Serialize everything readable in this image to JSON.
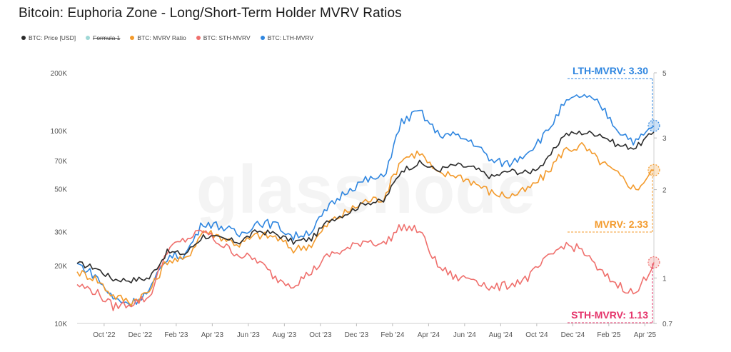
{
  "page": {
    "title": "Bitcoin: Euphoria Zone - Long/Short-Term Holder MVRV Ratios"
  },
  "legend": [
    {
      "label": "BTC: Price [USD]",
      "color": "#2b2b2b",
      "strike": false
    },
    {
      "label": "Formula 1",
      "color": "#9fd8d6",
      "strike": true
    },
    {
      "label": "BTC: MVRV Ratio",
      "color": "#f39a2b",
      "strike": false
    },
    {
      "label": "BTC: STH-MVRV",
      "color": "#ef6f6c",
      "strike": false
    },
    {
      "label": "BTC: LTH-MVRV",
      "color": "#2f86e0",
      "strike": false
    }
  ],
  "watermark": "glassnode",
  "chart_data": {
    "type": "line",
    "x_ticks": [
      "Oct '22",
      "Dec '22",
      "Feb '23",
      "Apr '23",
      "Jun '23",
      "Aug '23",
      "Oct '23",
      "Dec '23",
      "Feb '24",
      "Apr '24",
      "Jun '24",
      "Aug '24",
      "Oct '24",
      "Dec '24",
      "Feb '25",
      "Apr '25"
    ],
    "x_range": [
      "2022-09-01",
      "2025-05-31"
    ],
    "y_left": {
      "scale": "log",
      "range": [
        10000,
        200000
      ],
      "tick_values": [
        10000,
        20000,
        30000,
        50000,
        70000,
        100000,
        200000
      ],
      "tick_labels": [
        "10K",
        "20K",
        "30K",
        "50K",
        "70K",
        "100K",
        "200K"
      ]
    },
    "y_right": {
      "scale": "log",
      "range": [
        0.7,
        5
      ],
      "tick_values": [
        0.7,
        1,
        2,
        3,
        5
      ],
      "tick_labels": [
        "0.7",
        "1",
        "2",
        "3",
        "5"
      ]
    },
    "grid": false,
    "legend_position": "top-left",
    "x": [
      "2022-09",
      "2022-10",
      "2022-11",
      "2022-12",
      "2023-01",
      "2023-02",
      "2023-03",
      "2023-04",
      "2023-05",
      "2023-06",
      "2023-07",
      "2023-08",
      "2023-09",
      "2023-10",
      "2023-11",
      "2023-12",
      "2024-01",
      "2024-02",
      "2024-03",
      "2024-04",
      "2024-05",
      "2024-06",
      "2024-07",
      "2024-08",
      "2024-09",
      "2024-10",
      "2024-11",
      "2024-12",
      "2025-01",
      "2025-02",
      "2025-03",
      "2025-04",
      "2025-05"
    ],
    "series": [
      {
        "name": "BTC: Price [USD]",
        "axis": "left",
        "color": "#2b2b2b",
        "values": [
          20500,
          19500,
          17000,
          16800,
          17200,
          23500,
          23000,
          28500,
          27500,
          26500,
          30200,
          29200,
          26500,
          27500,
          34500,
          37500,
          42500,
          43000,
          62500,
          68000,
          62500,
          66500,
          64000,
          57500,
          62000,
          60500,
          68500,
          95500,
          98000,
          96500,
          84000,
          82000,
          98500
        ]
      },
      {
        "name": "BTC: MVRV Ratio",
        "axis": "right",
        "color": "#f39a2b",
        "values": [
          1.05,
          1.0,
          0.87,
          0.83,
          0.9,
          1.15,
          1.15,
          1.45,
          1.38,
          1.3,
          1.4,
          1.38,
          1.25,
          1.3,
          1.55,
          1.68,
          1.83,
          1.87,
          2.55,
          2.68,
          2.25,
          2.25,
          2.12,
          1.95,
          1.9,
          2.0,
          2.25,
          2.72,
          2.82,
          2.5,
          2.25,
          2.0,
          2.33
        ]
      },
      {
        "name": "BTC: STH-MVRV",
        "axis": "right",
        "color": "#ef6f6c",
        "values": [
          0.95,
          0.9,
          0.8,
          0.82,
          0.86,
          1.25,
          1.35,
          1.45,
          1.3,
          1.2,
          1.15,
          1.0,
          0.95,
          1.05,
          1.2,
          1.25,
          1.35,
          1.3,
          1.5,
          1.45,
          1.1,
          1.0,
          1.0,
          0.92,
          0.95,
          1.0,
          1.15,
          1.3,
          1.25,
          1.05,
          0.95,
          0.88,
          1.13
        ]
      },
      {
        "name": "BTC: LTH-MVRV",
        "axis": "right",
        "color": "#2f86e0",
        "values": [
          1.12,
          1.02,
          0.85,
          0.82,
          0.9,
          1.18,
          1.2,
          1.55,
          1.5,
          1.4,
          1.55,
          1.52,
          1.38,
          1.45,
          1.75,
          2.0,
          2.15,
          2.2,
          3.4,
          3.7,
          3.1,
          3.05,
          2.9,
          2.5,
          2.45,
          2.7,
          3.1,
          3.9,
          4.2,
          3.9,
          3.2,
          2.9,
          3.3
        ]
      }
    ],
    "annotations": [
      {
        "label": "LTH-MVRV: 3.30",
        "color": "#2f86e0",
        "value": 3.3
      },
      {
        "label": "MVRV: 2.33",
        "color": "#f39a2b",
        "value": 2.33
      },
      {
        "label": "STH-MVRV: 1.13",
        "color": "#e5336a",
        "value": 1.13
      }
    ]
  }
}
